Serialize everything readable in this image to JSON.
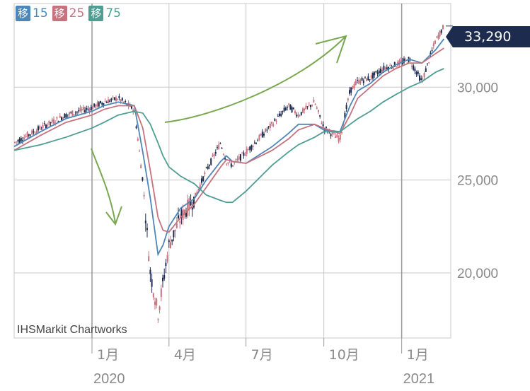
{
  "legend": [
    {
      "badge": "移",
      "label": "15",
      "color": "#4f86b8"
    },
    {
      "badge": "移",
      "label": "25",
      "color": "#c6727f"
    },
    {
      "badge": "移",
      "label": "75",
      "color": "#4e9e93"
    }
  ],
  "watermark": "IHSMarkit Chartworks",
  "last_price_label": "33,290",
  "colors": {
    "up": "#c6727f",
    "down": "#1d2b4f",
    "grid": "#c8c8c8",
    "axis_text": "#8a8a8a"
  },
  "chart_data": {
    "type": "line",
    "title": "",
    "xlabel": "",
    "ylabel": "",
    "x_ticks": [
      {
        "label": "1月",
        "sub": "2020",
        "date": "2020-01-01"
      },
      {
        "label": "4月",
        "sub": "",
        "date": "2020-04-01"
      },
      {
        "label": "7月",
        "sub": "",
        "date": "2020-07-01"
      },
      {
        "label": "10月",
        "sub": "",
        "date": "2020-10-01"
      },
      {
        "label": "1月",
        "sub": "2021",
        "date": "2021-01-01"
      }
    ],
    "y_ticks": [
      20000,
      25000,
      30000
    ],
    "y_tick_labels": [
      "20,000",
      "25,000",
      "30,000"
    ],
    "ylim": [
      16500,
      34500
    ],
    "xlim": [
      "2019-10-01",
      "2021-02-28"
    ],
    "last_value": 33290,
    "x": [
      "2019-10-01",
      "2019-11-01",
      "2019-12-01",
      "2020-01-01",
      "2020-01-15",
      "2020-02-01",
      "2020-02-20",
      "2020-03-01",
      "2020-03-10",
      "2020-03-19",
      "2020-03-25",
      "2020-04-01",
      "2020-04-15",
      "2020-05-01",
      "2020-05-15",
      "2020-06-01",
      "2020-06-08",
      "2020-06-15",
      "2020-07-01",
      "2020-08-01",
      "2020-08-20",
      "2020-09-01",
      "2020-09-20",
      "2020-10-01",
      "2020-10-20",
      "2020-11-01",
      "2020-11-10",
      "2020-11-25",
      "2020-12-10",
      "2020-12-25",
      "2021-01-10",
      "2021-01-25",
      "2021-02-10",
      "2021-02-20"
    ],
    "series": [
      {
        "name": "移 15",
        "values": [
          26800,
          27600,
          28300,
          28700,
          29000,
          29200,
          29000,
          26500,
          24000,
          21000,
          21500,
          22500,
          23500,
          24000,
          25000,
          26000,
          26300,
          26000,
          25900,
          26800,
          27500,
          28000,
          28000,
          27700,
          27600,
          29000,
          29800,
          30200,
          30800,
          31200,
          31500,
          31300,
          32000,
          32600
        ]
      },
      {
        "name": "移 25",
        "values": [
          26600,
          27400,
          28100,
          28500,
          28800,
          29000,
          29000,
          27800,
          25500,
          23000,
          22300,
          22200,
          23000,
          23700,
          24600,
          25700,
          26100,
          26000,
          25900,
          26600,
          27200,
          27700,
          28000,
          27800,
          27500,
          28500,
          29400,
          30000,
          30600,
          31000,
          31300,
          31300,
          31800,
          32100
        ]
      },
      {
        "name": "移 75",
        "values": [
          26600,
          26900,
          27300,
          27800,
          28100,
          28500,
          28700,
          28600,
          28000,
          27000,
          26300,
          25700,
          25200,
          24800,
          24200,
          23900,
          23800,
          23800,
          24400,
          25800,
          26500,
          26900,
          27300,
          27600,
          27600,
          28000,
          28300,
          28700,
          29200,
          29600,
          30000,
          30300,
          30800,
          31000
        ]
      },
      {
        "name": "candle",
        "values": [
          27000,
          27800,
          28500,
          28900,
          29200,
          29400,
          28800,
          25000,
          20000,
          17800,
          19500,
          21500,
          23000,
          24000,
          25500,
          27000,
          26000,
          25800,
          26500,
          28000,
          29000,
          28500,
          29200,
          27800,
          27200,
          29800,
          30300,
          30500,
          31000,
          31200,
          31500,
          30300,
          32500,
          33290
        ]
      }
    ]
  },
  "annotations": "arrows"
}
